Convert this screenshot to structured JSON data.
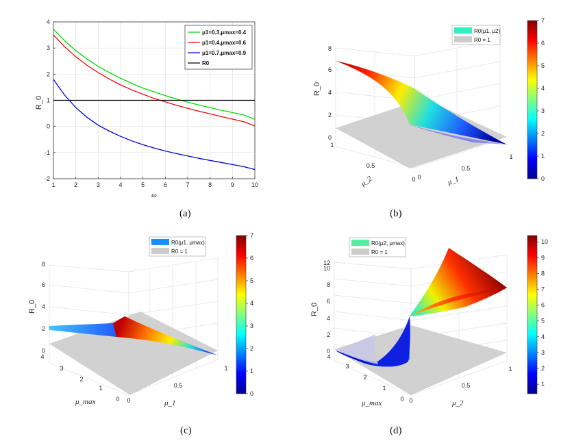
{
  "chart_data": [
    {
      "id": "a",
      "type": "line",
      "caption": "(a)",
      "xlabel": "ω",
      "ylabel": "R_0",
      "xlim": [
        1,
        10
      ],
      "ylim": [
        -2,
        4
      ],
      "xticks": [
        "1",
        "2",
        "3",
        "4",
        "5",
        "6",
        "7",
        "8",
        "9",
        "10"
      ],
      "yticks": [
        "-2",
        "-1",
        "0",
        "1",
        "2",
        "3",
        "4"
      ],
      "grid": true,
      "legend_position": "top-right",
      "legend": [
        {
          "text": "μ1=0.3,μmax=0.4",
          "color": "#00dd00"
        },
        {
          "text": "μ1=0.4,μmax=0.6",
          "color": "#ff0000"
        },
        {
          "text": "μ1=0.7,μmax=0.9",
          "color": "#0000dd"
        },
        {
          "text": "R0",
          "color": "#000000"
        }
      ],
      "series": [
        {
          "name": "μ1=0.3,μmax=0.4",
          "color": "#00dd00",
          "x": [
            1,
            1.5,
            2,
            2.5,
            3,
            3.5,
            4,
            4.5,
            5,
            5.5,
            6,
            6.5,
            7,
            7.5,
            8,
            8.5,
            9,
            9.5,
            10
          ],
          "y": [
            3.72,
            3.28,
            2.9,
            2.58,
            2.3,
            2.06,
            1.84,
            1.65,
            1.47,
            1.32,
            1.18,
            1.05,
            0.93,
            0.82,
            0.72,
            0.62,
            0.53,
            0.44,
            0.27
          ]
        },
        {
          "name": "μ1=0.4,μmax=0.6",
          "color": "#ff0000",
          "x": [
            1,
            1.5,
            2,
            2.5,
            3,
            3.5,
            4,
            4.5,
            5,
            5.5,
            6,
            6.5,
            7,
            7.5,
            8,
            8.5,
            9,
            9.5,
            10
          ],
          "y": [
            3.5,
            3.05,
            2.67,
            2.34,
            2.06,
            1.81,
            1.59,
            1.4,
            1.23,
            1.07,
            0.94,
            0.81,
            0.69,
            0.58,
            0.48,
            0.38,
            0.28,
            0.18,
            0.02
          ]
        },
        {
          "name": "μ1=0.7,μmax=0.9",
          "color": "#0000dd",
          "x": [
            1,
            1.5,
            2,
            2.5,
            3,
            3.5,
            4,
            4.5,
            5,
            5.5,
            6,
            6.5,
            7,
            7.5,
            8,
            8.5,
            9,
            9.5,
            10
          ],
          "y": [
            1.8,
            1.2,
            0.72,
            0.35,
            0.05,
            -0.18,
            -0.38,
            -0.55,
            -0.7,
            -0.83,
            -0.94,
            -1.04,
            -1.13,
            -1.22,
            -1.3,
            -1.38,
            -1.46,
            -1.54,
            -1.65
          ]
        },
        {
          "name": "R0",
          "color": "#000000",
          "x": [
            1,
            10
          ],
          "y": [
            1,
            1
          ]
        }
      ]
    },
    {
      "id": "b",
      "type": "surface",
      "caption": "(b)",
      "zlabel": "R_0",
      "xlabel": "μ_1",
      "ylabel": "μ_2",
      "zticks": [
        "0",
        "2",
        "4",
        "6",
        "8"
      ],
      "xticks": [
        "0",
        "0.5",
        "1"
      ],
      "yticks": [
        "0",
        "0.5",
        "1"
      ],
      "legend": [
        "R0(μ1, μ2)",
        "R0 = 1"
      ],
      "colorbar_ticks": [
        "0",
        "1",
        "2",
        "3",
        "4",
        "5",
        "6",
        "7"
      ],
      "zmax": 7
    },
    {
      "id": "c",
      "type": "surface",
      "caption": "(c)",
      "zlabel": "R_0",
      "xlabel": "μ_1",
      "ylabel": "μ_max",
      "zticks": [
        "0",
        "2",
        "4",
        "6",
        "8"
      ],
      "xticks": [
        "0",
        "0.5",
        "1"
      ],
      "yticks": [
        "0",
        "1",
        "2",
        "3",
        "4"
      ],
      "legend": [
        "R0(μ1, μmax)",
        "R0 = 1"
      ],
      "colorbar_ticks": [
        "0",
        "1",
        "2",
        "3",
        "4",
        "5",
        "6",
        "7"
      ],
      "zmax": 7
    },
    {
      "id": "d",
      "type": "surface",
      "caption": "(d)",
      "zlabel": "R_0",
      "xlabel": "μ_2",
      "ylabel": "μ_max",
      "zticks": [
        "0",
        "2",
        "4",
        "6",
        "8",
        "10",
        "12"
      ],
      "xticks": [
        "0",
        "0.5",
        "1"
      ],
      "yticks": [
        "0",
        "1",
        "2",
        "3",
        "4"
      ],
      "legend": [
        "R0(μ2, μmax)",
        "R0 = 1"
      ],
      "colorbar_ticks": [
        "1",
        "2",
        "3",
        "4",
        "5",
        "6",
        "7",
        "8",
        "9",
        "10"
      ],
      "zmax": 10.4
    }
  ]
}
